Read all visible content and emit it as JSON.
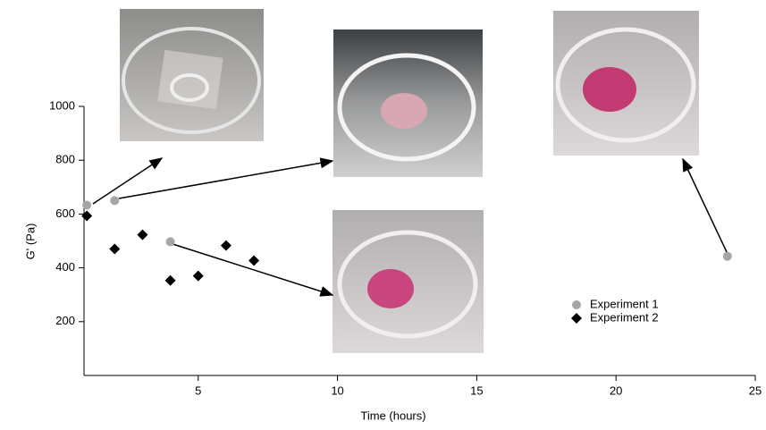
{
  "chart_data": {
    "type": "scatter",
    "xlabel": "Time (hours)",
    "ylabel": "G' (Pa)",
    "xlim": [
      0.9,
      25
    ],
    "ylim": [
      0,
      1000
    ],
    "xticks": [
      5,
      10,
      15,
      20,
      25
    ],
    "yticks": [
      200,
      400,
      600,
      800,
      1000
    ],
    "series": [
      {
        "name": "Experiment 1",
        "color": "#a6a6a6",
        "marker": "circle",
        "x": [
          1,
          2,
          4,
          24
        ],
        "values": [
          633,
          650,
          497,
          443
        ]
      },
      {
        "name": "Experiment 2",
        "color": "#000000",
        "marker": "diamond",
        "x": [
          1,
          2,
          3,
          4,
          5,
          6,
          7
        ],
        "values": [
          593,
          470,
          523,
          353,
          370,
          483,
          427
        ]
      }
    ]
  }
}
